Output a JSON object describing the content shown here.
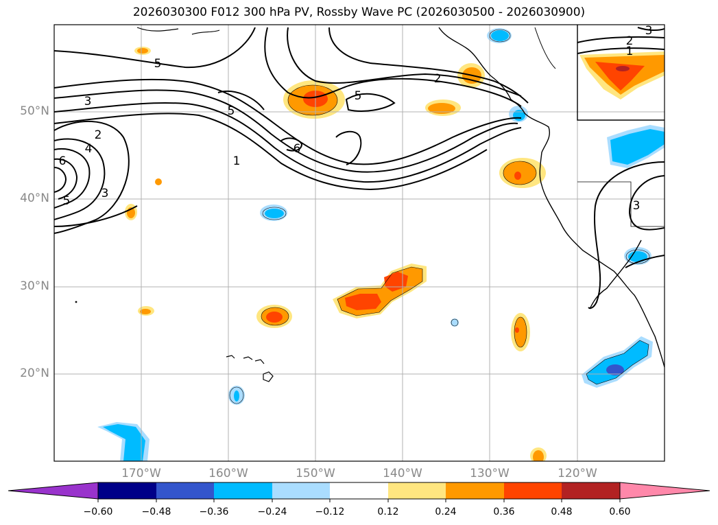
{
  "title": "2026030300 F012 300 hPa PV, Rossby Wave PC (2026030500 - 2026030900)",
  "lat_labels": [
    "50°N",
    "40°N",
    "30°N",
    "20°N"
  ],
  "lon_labels": [
    "170°W",
    "160°W",
    "150°W",
    "140°W",
    "130°W",
    "120°W"
  ],
  "contour_labels": [
    "5",
    "3",
    "2",
    "4",
    "6",
    "5",
    "3",
    "5",
    "6",
    "1",
    "2",
    "5",
    "2",
    "3",
    "1",
    "3"
  ],
  "colorbar": {
    "ticks": [
      "−0.60",
      "−0.48",
      "−0.36",
      "−0.24",
      "−0.12",
      "0.12",
      "0.24",
      "0.36",
      "0.48",
      "0.60"
    ],
    "colors": [
      "#9933cc",
      "#000088",
      "#3355cc",
      "#00bbff",
      "#aaddff",
      "#ffffff",
      "#ffe680",
      "#ff9900",
      "#ff4400",
      "#b22222",
      "#ff88aa"
    ]
  },
  "colors": {
    "blue_light": "#aaddff",
    "blue": "#00bbff",
    "blue_dark": "#3355cc",
    "yellow": "#ffe680",
    "orange": "#ff9900",
    "red": "#ff4400",
    "grid": "#b0b0b0"
  }
}
